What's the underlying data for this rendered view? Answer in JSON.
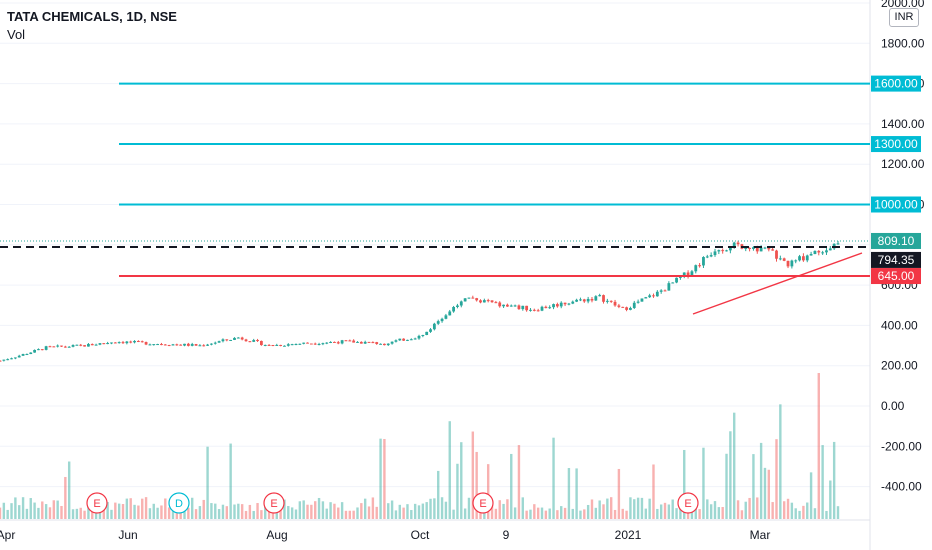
{
  "legend": {
    "symbol": "TATA CHEMICALS, 1D, NSE",
    "volume_label": "Vol"
  },
  "currency_badge": "INR",
  "colors": {
    "up": "#26a69a",
    "down": "#ef5350",
    "support_line": "#00bcd4",
    "resistance_line": "#f23645",
    "last_price_bg": "#131722",
    "current_bg": "#26a69a"
  },
  "chart_data": {
    "type": "candlestick",
    "symbol": "TATA CHEMICALS",
    "interval": "1D",
    "exchange": "NSE",
    "price_axis": {
      "ticks": [
        "2000.00",
        "1800.00",
        "1600.00",
        "1400.00",
        "1200.00",
        "1000.00",
        "800.00",
        "600.00",
        "400.00",
        "200.00",
        "0.00",
        "-200.00",
        "-400.00"
      ],
      "ylim": [
        -540,
        2010
      ]
    },
    "time_axis": {
      "ticks": [
        "Apr",
        "Jun",
        "Aug",
        "Oct",
        "9",
        "2021",
        "Mar"
      ]
    },
    "horizontal_lines": [
      {
        "price": 1600,
        "label": "1600.00",
        "kind": "support"
      },
      {
        "price": 1300,
        "label": "1300.00",
        "kind": "support"
      },
      {
        "price": 1000,
        "label": "1000.00",
        "kind": "support"
      },
      {
        "price": 645,
        "label": "645.00",
        "kind": "resistance"
      }
    ],
    "current_price": {
      "value": 809.1,
      "label": "809.10"
    },
    "last_close_dashed": {
      "value": 794.35,
      "label": "794.35"
    },
    "trendline": {
      "from": {
        "month": "Jan 2021",
        "price": 465
      },
      "to": {
        "month": "Mar 2021",
        "price": 760
      }
    },
    "event_markers": [
      {
        "label": "E",
        "type": "earnings",
        "near": "May"
      },
      {
        "label": "D",
        "type": "dividend",
        "near": "Jun"
      },
      {
        "label": "E",
        "type": "earnings",
        "near": "Aug"
      },
      {
        "label": "E",
        "type": "earnings",
        "near": "Oct"
      },
      {
        "label": "E",
        "type": "earnings",
        "near": "Feb"
      }
    ],
    "price_path": [
      {
        "t": 0,
        "close": 225
      },
      {
        "t": 5,
        "close": 250
      },
      {
        "t": 12,
        "close": 290
      },
      {
        "t": 22,
        "close": 300
      },
      {
        "t": 30,
        "close": 320
      },
      {
        "t": 40,
        "close": 310
      },
      {
        "t": 52,
        "close": 300
      },
      {
        "t": 62,
        "close": 340
      },
      {
        "t": 70,
        "close": 300
      },
      {
        "t": 78,
        "close": 310
      },
      {
        "t": 90,
        "close": 320
      },
      {
        "t": 100,
        "close": 310
      },
      {
        "t": 110,
        "close": 350
      },
      {
        "t": 116,
        "close": 460
      },
      {
        "t": 121,
        "close": 540
      },
      {
        "t": 130,
        "close": 500
      },
      {
        "t": 139,
        "close": 480
      },
      {
        "t": 149,
        "close": 520
      },
      {
        "t": 156,
        "close": 540
      },
      {
        "t": 162,
        "close": 480
      },
      {
        "t": 171,
        "close": 560
      },
      {
        "t": 179,
        "close": 660
      },
      {
        "t": 186,
        "close": 780
      },
      {
        "t": 194,
        "close": 800
      },
      {
        "t": 201,
        "close": 760
      },
      {
        "t": 205,
        "close": 700
      },
      {
        "t": 211,
        "close": 760
      },
      {
        "t": 218,
        "close": 809
      }
    ]
  }
}
